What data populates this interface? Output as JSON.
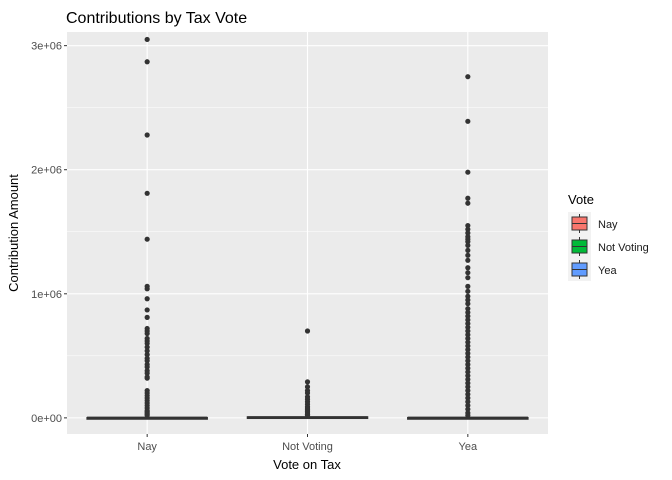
{
  "chart_data": {
    "type": "box",
    "title": "Contributions by Tax Vote",
    "xlabel": "Vote on Tax",
    "ylabel": "Contribution Amount",
    "categories": [
      "Nay",
      "Not Voting",
      "Yea"
    ],
    "ylim": [
      -130000,
      3110000
    ],
    "yticks": [
      0,
      1000000,
      2000000,
      3000000
    ],
    "ytick_labels": [
      "0e+00",
      "1e+06",
      "2e+06",
      "3e+06"
    ],
    "grid": true,
    "legend": {
      "title": "Vote",
      "position": "right",
      "entries": [
        "Nay",
        "Not Voting",
        "Yea"
      ]
    },
    "series": [
      {
        "name": "Nay",
        "color": "#F8766D",
        "box": {
          "lower_whisker": 0,
          "q1": 500,
          "median": 1000,
          "q3": 2000,
          "upper_whisker": 4500
        },
        "outliers": [
          3050000,
          2870000,
          2280000,
          1810000,
          1440000,
          1060000,
          1040000,
          960000,
          870000,
          810000,
          720000,
          700000,
          680000,
          640000,
          620000,
          600000,
          570000,
          540000,
          510000,
          480000,
          460000,
          430000,
          410000,
          380000,
          360000,
          330000,
          320000,
          220000,
          200000,
          180000,
          160000,
          140000,
          120000,
          100000,
          80000,
          60000,
          50000,
          40000,
          30000,
          20000
        ]
      },
      {
        "name": "Not Voting",
        "color": "#00BA38",
        "box": {
          "lower_whisker": 0,
          "q1": 1000,
          "median": 4000,
          "q3": 8000,
          "upper_whisker": 18000
        },
        "outliers": [
          700000,
          290000,
          250000,
          220000,
          200000,
          170000,
          150000,
          130000,
          110000,
          90000,
          80000,
          70000,
          60000,
          50000,
          40000,
          30000,
          25000,
          20000
        ]
      },
      {
        "name": "Yea",
        "color": "#619CFF",
        "box": {
          "lower_whisker": 0,
          "q1": 500,
          "median": 1000,
          "q3": 2000,
          "upper_whisker": 4500
        },
        "outliers": [
          2750000,
          2390000,
          1980000,
          1770000,
          1730000,
          1550000,
          1520000,
          1490000,
          1460000,
          1440000,
          1420000,
          1390000,
          1350000,
          1310000,
          1270000,
          1210000,
          1170000,
          1130000,
          1060000,
          1020000,
          980000,
          950000,
          920000,
          880000,
          850000,
          820000,
          790000,
          760000,
          730000,
          700000,
          670000,
          640000,
          610000,
          580000,
          550000,
          520000,
          490000,
          460000,
          430000,
          400000,
          370000,
          340000,
          310000,
          280000,
          250000,
          220000,
          190000,
          160000,
          130000,
          100000,
          70000,
          40000,
          20000
        ]
      }
    ]
  }
}
